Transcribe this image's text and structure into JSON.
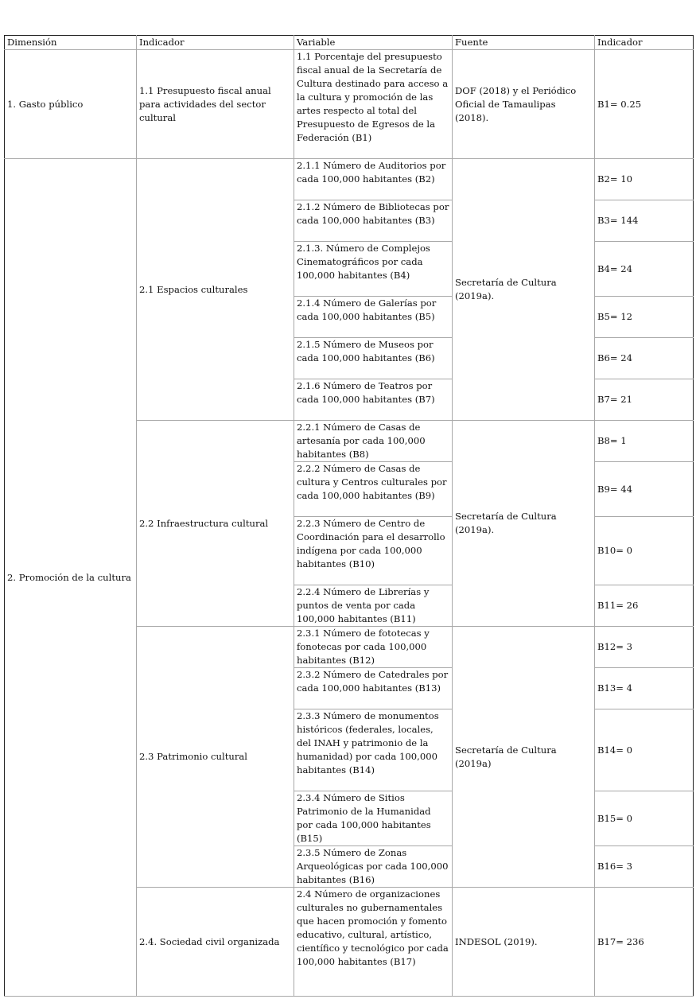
{
  "headers": [
    "Dimensión",
    "Indicador",
    "Variable",
    "Fuente",
    "Indicador"
  ],
  "rows": [
    {
      "dimension": "1. Gasto público",
      "indicador": "1.1 Presupuesto fiscal anual para actividades del sector cultural",
      "variable": "1.1 Porcentaje del presupuesto fiscal anual de la Secretaría de Cultura destinado para acceso a la cultura y promoción de las artes respecto al total del Presupuesto de Egresos de la Federación (B1)",
      "fuente": "DOF (2018) y el Periódico Oficial de Tamaulipas (2018).",
      "valor": "B1= 0.25"
    },
    {
      "dimension": "2. Promoción de la cultura",
      "indicador": "2.1 Espacios culturales",
      "variable": "2.1.1 Número de Auditorios por cada 100,000 habitantes (B2)",
      "fuente": "Secretaría de Cultura (2019a).",
      "valor": "B2= 10"
    },
    {
      "variable": "2.1.2 Número de Bibliotecas por cada 100,000 habitantes (B3)",
      "valor": "B3= 144"
    },
    {
      "variable": "2.1.3. Número de Complejos Cinematográficos por cada 100,000 habitantes (B4)",
      "valor": "B4= 24"
    },
    {
      "variable": "2.1.4 Número de Galerías por cada 100,000 habitantes (B5)",
      "valor": "B5= 12"
    },
    {
      "variable": "2.1.5 Número de Museos por cada 100,000 habitantes (B6)",
      "valor": "B6= 24"
    },
    {
      "variable": "2.1.6 Número de Teatros por cada 100,000 habitantes (B7)",
      "valor": "B7= 21"
    },
    {
      "indicador": "2.2 Infraestructura cultural",
      "variable": "2.2.1 Número de Casas de artesanía por cada 100,000 habitantes (B8)",
      "fuente": "Secretaría de Cultura (2019a).",
      "valor": "B8= 1"
    },
    {
      "variable": "2.2.2 Número de Casas de cultura y Centros culturales por cada 100,000 habitantes (B9)",
      "valor": "B9= 44"
    },
    {
      "variable": "2.2.3 Número de Centro de Coordinación para el desarrollo indígena por cada 100,000 habitantes (B10)",
      "valor": "B10= 0"
    },
    {
      "variable": "2.2.4 Número de Librerías y puntos de venta por cada 100,000 habitantes (B11)",
      "valor": "B11= 26"
    },
    {
      "indicador": "2.3 Patrimonio cultural",
      "variable": "2.3.1 Número de fototecas y fonotecas por cada 100,000 habitantes (B12)",
      "fuente": "Secretaría de Cultura (2019a)",
      "valor": "B12= 3"
    },
    {
      "variable": "2.3.2 Número de Catedrales por cada 100,000 habitantes (B13)",
      "valor": "B13= 4"
    },
    {
      "variable": "2.3.3 Número de monumentos históricos (federales, locales, del INAH y patrimonio de la humanidad) por cada 100,000 habitantes (B14)",
      "valor": "B14= 0"
    },
    {
      "variable": "2.3.4 Número de Sitios Patrimonio de la Humanidad por cada 100,000 habitantes (B15)",
      "valor": "B15= 0"
    },
    {
      "variable": "2.3.5 Número de Zonas Arqueológicas por cada 100,000 habitantes (B16)",
      "valor": "B16= 3"
    },
    {
      "indicador": "2.4. Sociedad civil organizada",
      "variable": "2.4 Número de organizaciones culturales no gubernamentales que hacen promoción y fomento educativo, cultural, artístico, científico y tecnológico por cada 100,000 habitantes (B17)",
      "fuente": "INDESOL (2019).",
      "valor": "B17= 236"
    }
  ]
}
